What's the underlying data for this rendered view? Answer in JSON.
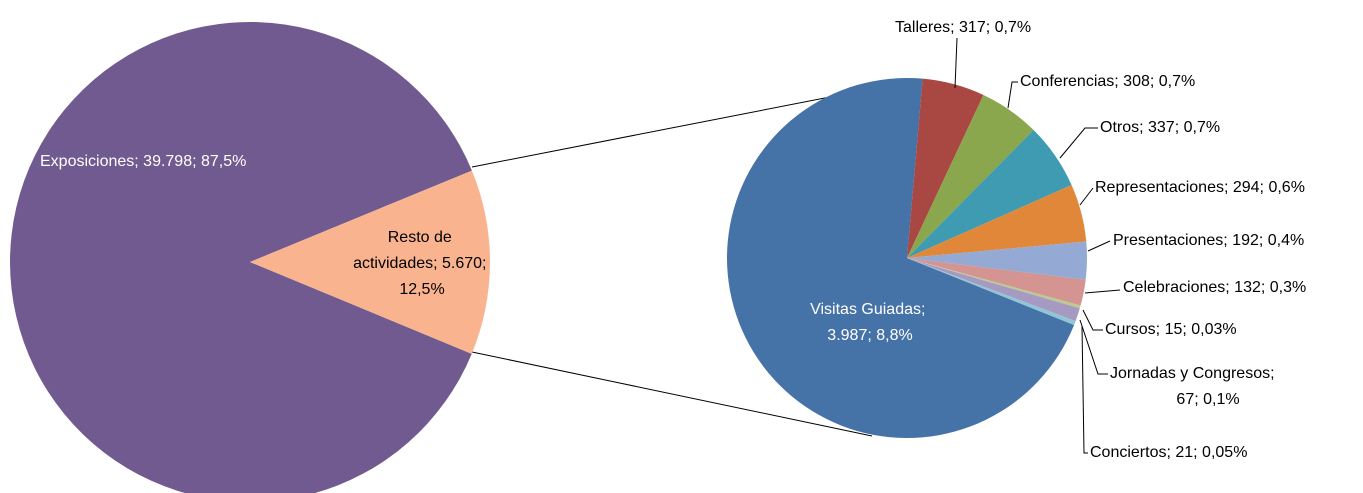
{
  "chart_data": [
    {
      "type": "pie",
      "categories": [
        "Exposiciones",
        "Resto de actividades"
      ],
      "values": [
        39798,
        5670
      ],
      "value_labels": [
        "Exposiciones; 39.798; 87,5%",
        "Resto de actividades; 5.670; 12,5%"
      ],
      "colors": [
        "#705a8f",
        "#f9b48f"
      ]
    },
    {
      "type": "pie",
      "categories": [
        "Visitas Guiadas",
        "Talleres",
        "Conferencias",
        "Otros",
        "Representaciones",
        "Presentaciones",
        "Celebraciones",
        "Cursos",
        "Jornadas y Congresos",
        "Conciertos"
      ],
      "values": [
        3987,
        317,
        308,
        337,
        294,
        192,
        132,
        15,
        67,
        21
      ],
      "value_labels": [
        "Visitas Guiadas; 3.987; 8,8%",
        "Talleres; 317; 0,7%",
        "Conferencias; 308; 0,7%",
        "Otros; 337; 0,7%",
        "Representaciones; 294; 0,6%",
        "Presentaciones; 192; 0,4%",
        "Celebraciones; 132; 0,3%",
        "Cursos; 15; 0,03%",
        "Jornadas y Congresos; 67; 0,1%",
        "Conciertos; 21; 0,05%"
      ],
      "colors": [
        "#4572a7",
        "#a94743",
        "#8aa74e",
        "#3f9bb1",
        "#e0873a",
        "#94a9d3",
        "#d49492",
        "#b9cc8f",
        "#a699c2",
        "#8fc6d6"
      ]
    }
  ]
}
